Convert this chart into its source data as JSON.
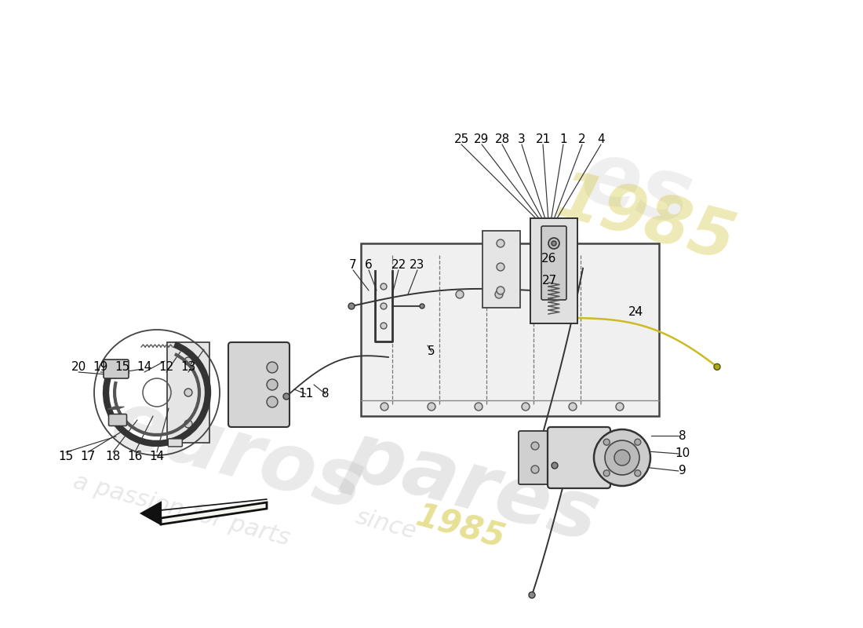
{
  "figsize": [
    11.0,
    8.0
  ],
  "dpi": 100,
  "bg": "#ffffff",
  "lc": "#222222",
  "wm1_text": "euros",
  "wm2_text": "pares",
  "wm3_text": "a passion for parts",
  "wm4_text": "since",
  "wm5_text": "1985",
  "wm_color": "#c8c8c8",
  "wm_yellow": "#d4c840",
  "left_top_labels": [
    [
      "20",
      100,
      468
    ],
    [
      "19",
      128,
      468
    ],
    [
      "15",
      156,
      468
    ],
    [
      "14",
      184,
      468
    ],
    [
      "12",
      212,
      468
    ],
    [
      "13",
      240,
      468
    ]
  ],
  "left_bot_labels": [
    [
      "15",
      84,
      582
    ],
    [
      "17",
      112,
      582
    ],
    [
      "18",
      144,
      582
    ],
    [
      "16",
      172,
      582
    ],
    [
      "14",
      200,
      582
    ]
  ],
  "right_top_labels": [
    [
      "25",
      588,
      178
    ],
    [
      "29",
      614,
      178
    ],
    [
      "28",
      640,
      178
    ],
    [
      "3",
      665,
      178
    ],
    [
      "21",
      692,
      178
    ],
    [
      "1",
      718,
      178
    ],
    [
      "2",
      742,
      178
    ],
    [
      "4",
      766,
      178
    ]
  ],
  "mid_labels": [
    [
      "7",
      450,
      338
    ],
    [
      "6",
      470,
      338
    ],
    [
      "22",
      508,
      338
    ],
    [
      "23",
      532,
      338
    ]
  ],
  "other_labels": [
    [
      "11",
      390,
      502
    ],
    [
      "8",
      415,
      502
    ],
    [
      "5",
      550,
      448
    ],
    [
      "26",
      700,
      330
    ],
    [
      "27",
      700,
      358
    ],
    [
      "24",
      810,
      398
    ]
  ],
  "act_labels": [
    [
      "8",
      870,
      555
    ],
    [
      "10",
      870,
      578
    ],
    [
      "9",
      870,
      600
    ]
  ]
}
